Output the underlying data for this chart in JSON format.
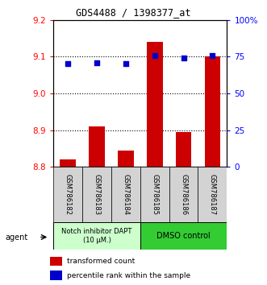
{
  "title": "GDS4488 / 1398377_at",
  "samples": [
    "GSM786182",
    "GSM786183",
    "GSM786184",
    "GSM786185",
    "GSM786186",
    "GSM786187"
  ],
  "bar_values": [
    8.82,
    8.91,
    8.845,
    9.14,
    8.895,
    9.1
  ],
  "percentile_values": [
    70,
    71,
    70,
    76,
    74,
    76
  ],
  "ylim_left": [
    8.8,
    9.2
  ],
  "ylim_right": [
    0,
    100
  ],
  "yticks_left": [
    8.8,
    8.9,
    9.0,
    9.1,
    9.2
  ],
  "yticks_right": [
    0,
    25,
    50,
    75,
    100
  ],
  "yticklabels_right": [
    "0",
    "25",
    "50",
    "75",
    "100%"
  ],
  "grid_lines": [
    9.1,
    9.0,
    8.9
  ],
  "bar_color": "#cc0000",
  "dot_color": "#0000cc",
  "group1_label": "Notch inhibitor DAPT\n(10 μM.)",
  "group2_label": "DMSO control",
  "group1_color": "#ccffcc",
  "group2_color": "#33cc33",
  "agent_label": "agent",
  "legend_bar_label": "transformed count",
  "legend_dot_label": "percentile rank within the sample",
  "bar_width": 0.55
}
